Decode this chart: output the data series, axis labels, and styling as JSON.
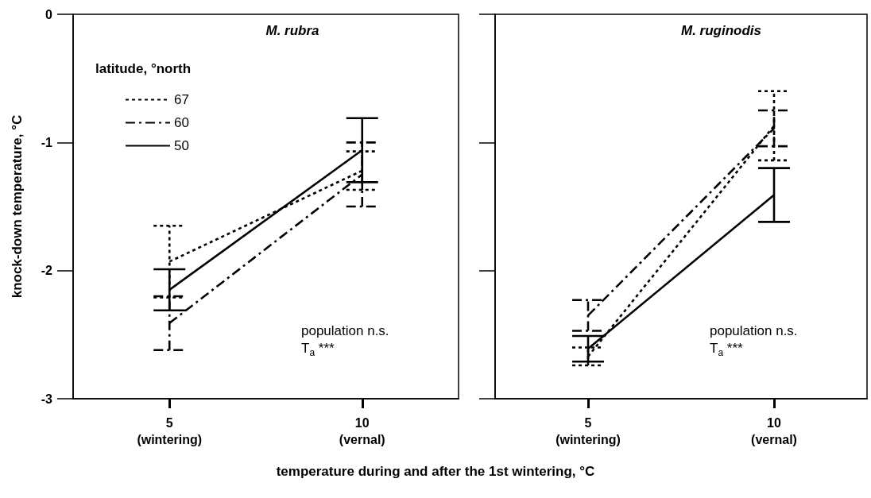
{
  "chart_data": [
    {
      "type": "line",
      "title": "M. rubra",
      "ylabel": "knock-down temperature, °C",
      "xlabel": "temperature during and after the 1st wintering, °C",
      "legend_title": "latitude, °north",
      "legend": "top left",
      "marker": "none",
      "categories": [
        "5\n(wintering)",
        "10\n(vernal)"
      ],
      "ylim": [
        -3,
        0
      ],
      "yticks": [
        -3,
        -2,
        -1,
        0
      ],
      "annotations": [
        "population n.s.",
        "T$_{a}$ ***"
      ],
      "series": [
        {
          "name": "67",
          "color": "#000000",
          "line_style": "dotted",
          "values": [
            -1.93,
            -1.22
          ],
          "errors": [
            0.28,
            0.15
          ]
        },
        {
          "name": "60",
          "color": "#000000",
          "line_style": "dashdot",
          "values": [
            -2.41,
            -1.25
          ],
          "errors": [
            0.21,
            0.25
          ]
        },
        {
          "name": "50",
          "color": "#000000",
          "line_style": "solid",
          "values": [
            -2.15,
            -1.06
          ],
          "errors": [
            0.16,
            0.25
          ]
        }
      ]
    },
    {
      "type": "line",
      "title": "M. ruginodis",
      "legend": false,
      "marker": "none",
      "tick_labels": "x",
      "categories": [
        "5\n(wintering)",
        "10\n(vernal)"
      ],
      "ylim": [
        -3,
        0
      ],
      "yticks": [
        -3,
        -2,
        -1,
        0
      ],
      "annotations": [
        "population n.s.",
        "T$_{a}$ ***"
      ],
      "series": [
        {
          "color": "#000000",
          "line_style": "dotted",
          "values": [
            -2.67,
            -0.87
          ],
          "errors": [
            0.07,
            0.27
          ]
        },
        {
          "color": "#000000",
          "line_style": "dashdot",
          "values": [
            -2.35,
            -0.89
          ],
          "errors": [
            0.12,
            0.14
          ]
        },
        {
          "color": "#000000",
          "line_style": "solid",
          "values": [
            -2.61,
            -1.41
          ],
          "errors": [
            0.1,
            0.21
          ]
        }
      ]
    }
  ]
}
